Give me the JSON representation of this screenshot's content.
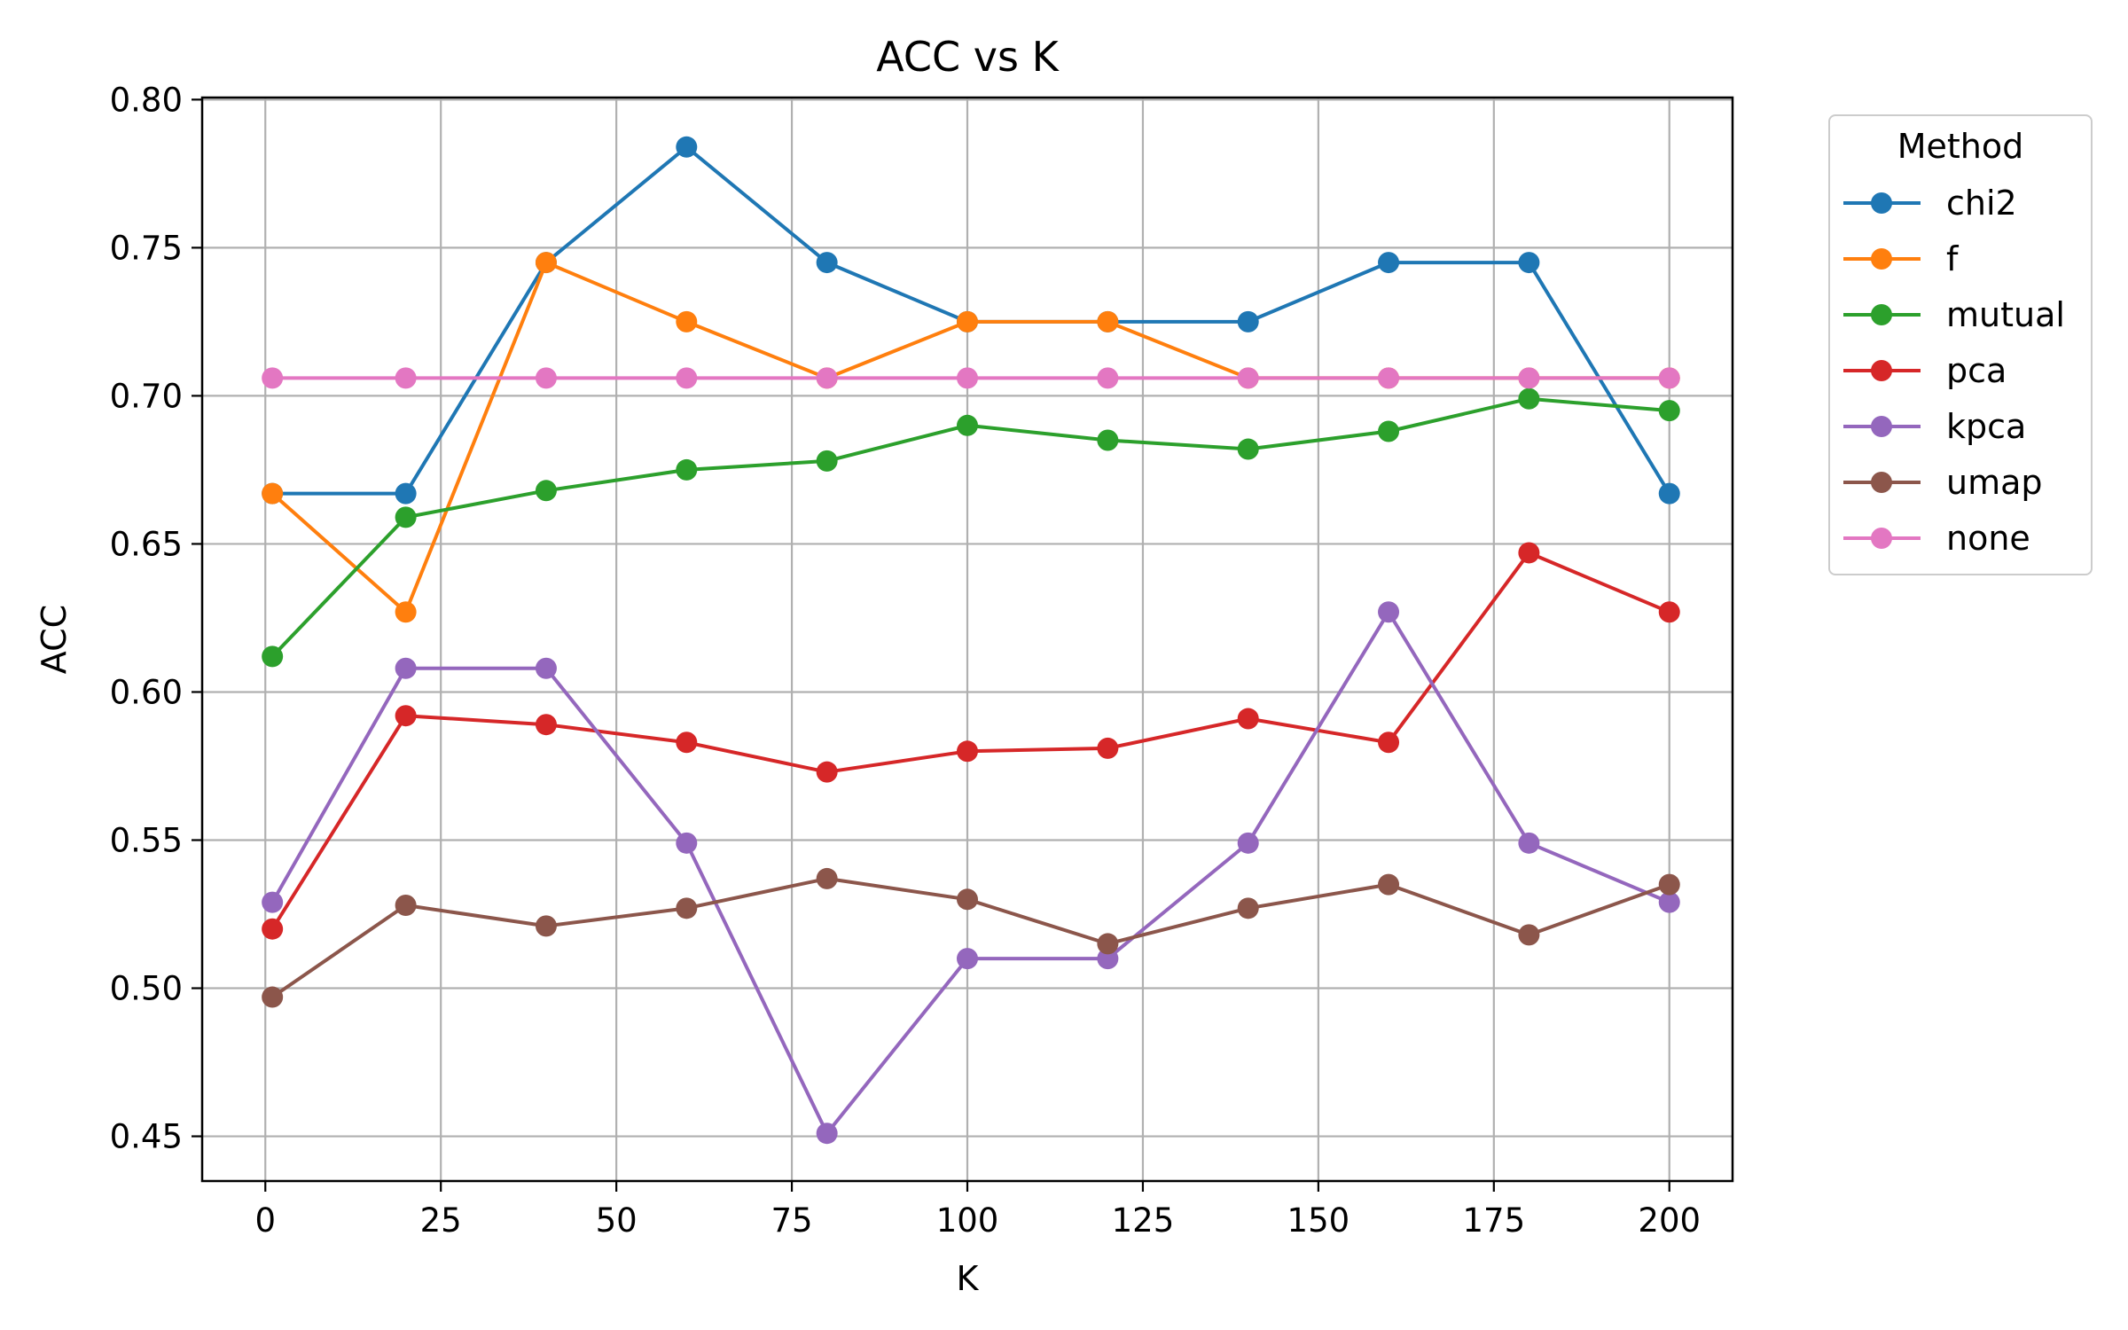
{
  "chart_data": {
    "type": "line",
    "title": "ACC vs K",
    "xlabel": "K",
    "ylabel": "ACC",
    "xlim": [
      -9,
      209
    ],
    "ylim": [
      0.4349,
      0.8007
    ],
    "xticks": [
      0,
      25,
      50,
      75,
      100,
      125,
      150,
      175,
      200
    ],
    "xtick_labels": [
      "0",
      "25",
      "50",
      "75",
      "100",
      "125",
      "150",
      "175",
      "200"
    ],
    "yticks": [
      0.45,
      0.5,
      0.55,
      0.6,
      0.65,
      0.7,
      0.75,
      0.8
    ],
    "ytick_labels": [
      "0.45",
      "0.50",
      "0.55",
      "0.60",
      "0.65",
      "0.70",
      "0.75",
      "0.80"
    ],
    "grid": true,
    "legend": {
      "title": "Method",
      "placement": "outside-top-right"
    },
    "x": [
      1,
      20,
      40,
      60,
      80,
      100,
      120,
      140,
      160,
      180,
      200
    ],
    "series": [
      {
        "name": "chi2",
        "color": "#1f77b4",
        "values": [
          0.667,
          0.667,
          0.745,
          0.784,
          0.745,
          0.725,
          0.725,
          0.725,
          0.745,
          0.745,
          0.667
        ]
      },
      {
        "name": "f",
        "color": "#ff7f0e",
        "values": [
          0.667,
          0.627,
          0.745,
          0.725,
          0.706,
          0.725,
          0.725,
          0.706,
          0.706,
          0.706,
          0.706
        ]
      },
      {
        "name": "mutual",
        "color": "#2ca02c",
        "values": [
          0.612,
          0.659,
          0.668,
          0.675,
          0.678,
          0.69,
          0.685,
          0.682,
          0.688,
          0.699,
          0.695
        ]
      },
      {
        "name": "pca",
        "color": "#d62728",
        "values": [
          0.52,
          0.592,
          0.589,
          0.583,
          0.573,
          0.58,
          0.581,
          0.591,
          0.583,
          0.647,
          0.627
        ]
      },
      {
        "name": "kpca",
        "color": "#9467bd",
        "values": [
          0.529,
          0.608,
          0.608,
          0.549,
          0.451,
          0.51,
          0.51,
          0.549,
          0.627,
          0.549,
          0.529
        ]
      },
      {
        "name": "umap",
        "color": "#8c564b",
        "values": [
          0.497,
          0.528,
          0.521,
          0.527,
          0.537,
          0.53,
          0.515,
          0.527,
          0.535,
          0.518,
          0.535
        ]
      },
      {
        "name": "none",
        "color": "#e377c2",
        "values": [
          0.706,
          0.706,
          0.706,
          0.706,
          0.706,
          0.706,
          0.706,
          0.706,
          0.706,
          0.706,
          0.706
        ]
      }
    ]
  }
}
